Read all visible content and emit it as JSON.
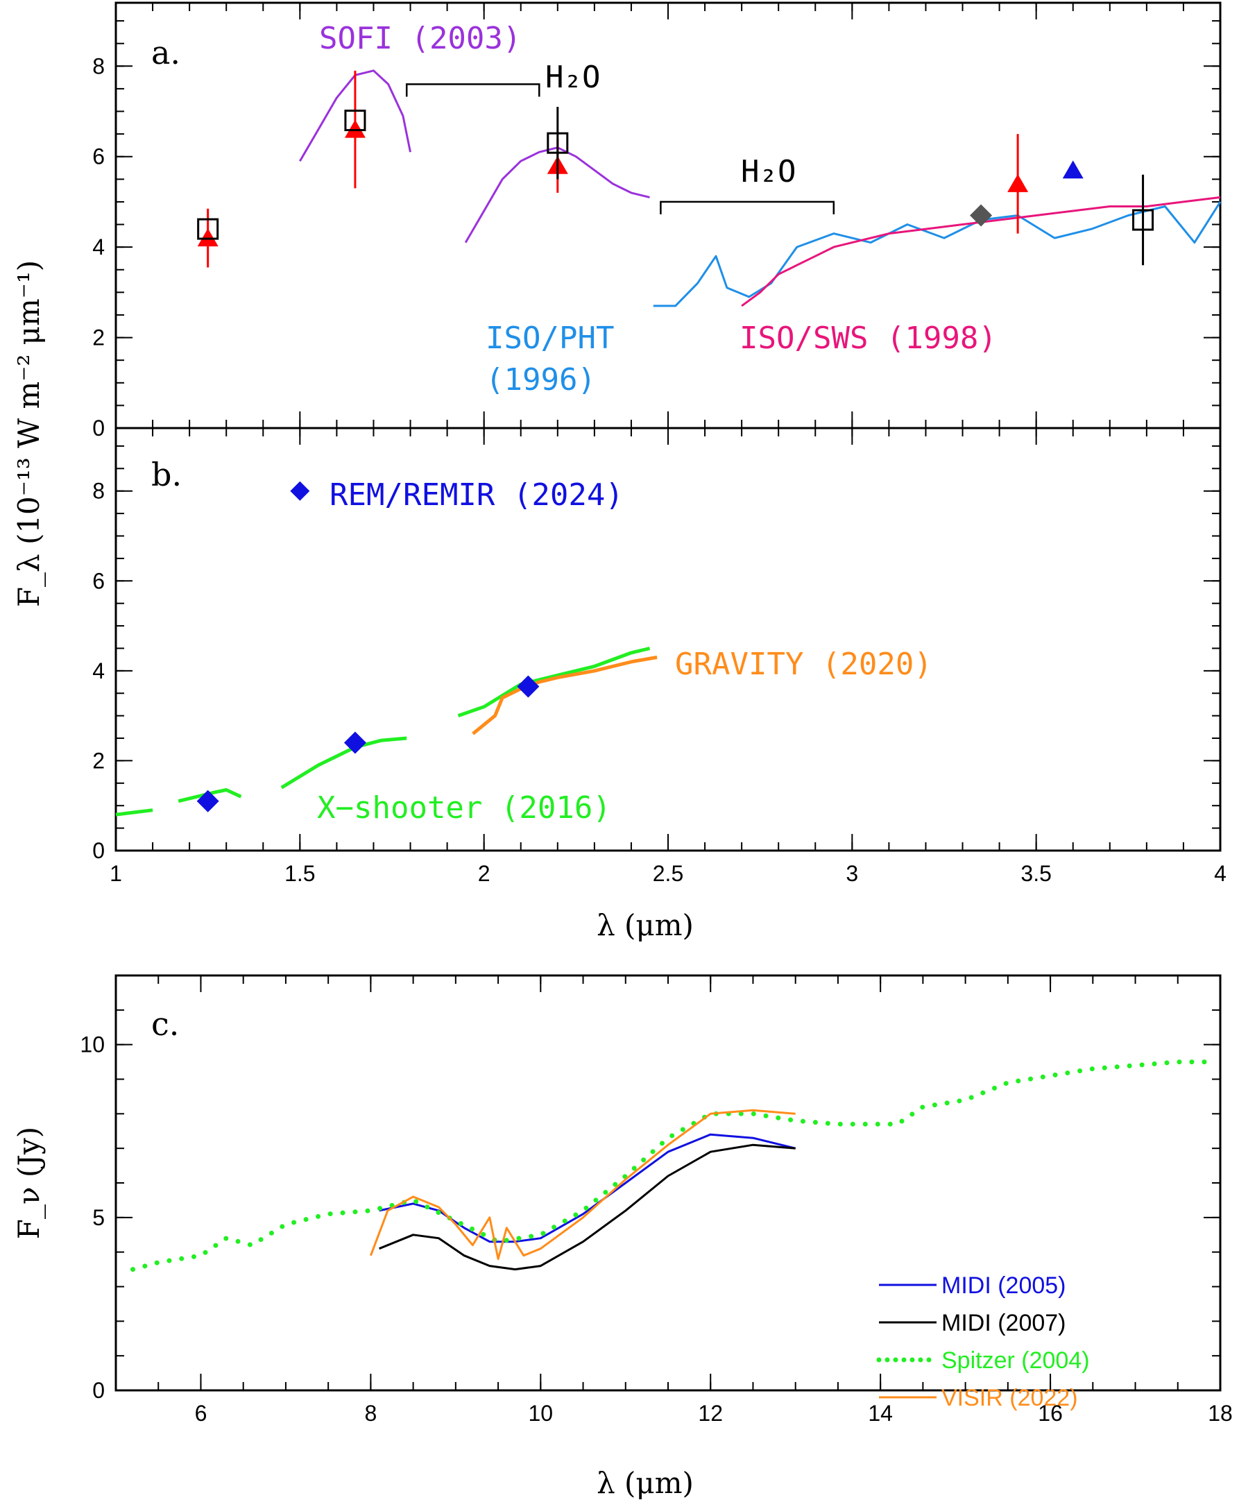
{
  "chart_data": [
    {
      "panel": "a.",
      "type": "line",
      "xlim": [
        1,
        4
      ],
      "ylim": [
        0,
        9.4
      ],
      "xlabel": "",
      "ylabel": "F_λ (10⁻¹³ W m⁻² μm⁻¹)",
      "yticks": [
        "0",
        "2",
        "4",
        "6",
        "8"
      ],
      "annotations": [
        {
          "text": "SOFI (2003)",
          "color": "#9a32dc"
        },
        {
          "text": "H₂O"
        },
        {
          "text": "H₂O"
        },
        {
          "text": "ISO/PHT",
          "color": "#1f8fe8"
        },
        {
          "text": "(1996)",
          "color": "#1f8fe8"
        },
        {
          "text": "ISO/SWS (1998)",
          "color": "#e8157b"
        }
      ],
      "h2o_bands": [
        [
          1.79,
          2.15
        ],
        [
          2.48,
          2.95
        ]
      ],
      "series": [
        {
          "name": "SOFI (2003)",
          "color": "#9a32dc",
          "x": [
            1.5,
            1.55,
            1.6,
            1.65,
            1.7,
            1.74,
            1.78,
            1.8
          ],
          "y": [
            5.9,
            6.6,
            7.3,
            7.8,
            7.9,
            7.6,
            6.9,
            6.1
          ]
        },
        {
          "name": "SOFI (2003)",
          "color": "#9a32dc",
          "x": [
            1.95,
            2.0,
            2.05,
            2.1,
            2.15,
            2.2,
            2.25,
            2.3,
            2.35,
            2.4,
            2.45
          ],
          "y": [
            4.1,
            4.8,
            5.5,
            5.9,
            6.1,
            6.2,
            6.0,
            5.7,
            5.4,
            5.2,
            5.1
          ]
        },
        {
          "name": "ISO/PHT (1996)",
          "color": "#1f8fe8",
          "x": [
            2.46,
            2.52,
            2.58,
            2.63,
            2.66,
            2.72,
            2.78,
            2.85,
            2.95,
            3.05,
            3.15,
            3.25,
            3.35,
            3.45,
            3.55,
            3.65,
            3.75,
            3.85,
            3.93,
            4.0
          ],
          "y": [
            2.7,
            2.7,
            3.2,
            3.8,
            3.1,
            2.9,
            3.2,
            4.0,
            4.3,
            4.1,
            4.5,
            4.2,
            4.6,
            4.7,
            4.2,
            4.4,
            4.7,
            4.9,
            4.1,
            5.0
          ]
        },
        {
          "name": "ISO/SWS (1998)",
          "color": "#e8157b",
          "x": [
            2.7,
            2.75,
            2.8,
            2.85,
            2.9,
            2.95,
            3.0,
            3.1,
            3.2,
            3.3,
            3.4,
            3.5,
            3.6,
            3.7,
            3.8,
            3.9,
            4.0
          ],
          "y": [
            2.7,
            3.0,
            3.4,
            3.6,
            3.8,
            4.0,
            4.1,
            4.3,
            4.4,
            4.5,
            4.6,
            4.7,
            4.8,
            4.9,
            4.9,
            5.0,
            5.1
          ]
        }
      ],
      "points": [
        {
          "marker": "triangle",
          "color": "#ff0000",
          "x": [
            1.25,
            1.65,
            2.2,
            3.45
          ],
          "y": [
            4.2,
            6.6,
            5.8,
            5.4
          ],
          "err": [
            0.65,
            1.3,
            0.6,
            1.1
          ]
        },
        {
          "marker": "open-square",
          "color": "#000000",
          "x": [
            1.25,
            1.65,
            2.2,
            3.79
          ],
          "y": [
            4.4,
            6.8,
            6.3,
            4.6
          ],
          "err": [
            0,
            0,
            0.8,
            1.0
          ]
        },
        {
          "marker": "diamond",
          "color": "#555555",
          "x": [
            3.35
          ],
          "y": [
            4.7
          ]
        },
        {
          "marker": "triangle",
          "color": "#1010e0",
          "x": [
            3.6
          ],
          "y": [
            5.7
          ]
        }
      ]
    },
    {
      "panel": "b.",
      "type": "line",
      "xlim": [
        1,
        4
      ],
      "ylim": [
        0,
        9.4
      ],
      "xlabel": "λ (μm)",
      "xticks": [
        "1",
        "1.5",
        "2",
        "2.5",
        "3",
        "3.5",
        "4"
      ],
      "yticks": [
        "0",
        "2",
        "4",
        "6",
        "8"
      ],
      "annotations": [
        {
          "text": "REM/REMIR (2024)",
          "color": "#1010e0"
        },
        {
          "text": "GRAVITY (2020)",
          "color": "#ff8c1a"
        },
        {
          "text": "X−shooter (2016)",
          "color": "#22ee22"
        }
      ],
      "series": [
        {
          "name": "X−shooter (2016)",
          "color": "#22ee22",
          "x": [
            1.0,
            1.05,
            1.1
          ],
          "y": [
            0.8,
            0.85,
            0.9
          ]
        },
        {
          "name": "X−shooter (2016)",
          "color": "#22ee22",
          "x": [
            1.17,
            1.22,
            1.27,
            1.3,
            1.34
          ],
          "y": [
            1.1,
            1.2,
            1.3,
            1.35,
            1.2
          ]
        },
        {
          "name": "X−shooter (2016)",
          "color": "#22ee22",
          "x": [
            1.45,
            1.55,
            1.65,
            1.72,
            1.79
          ],
          "y": [
            1.4,
            1.9,
            2.3,
            2.45,
            2.5
          ]
        },
        {
          "name": "X−shooter (2016)",
          "color": "#22ee22",
          "x": [
            1.93,
            2.0,
            2.1,
            2.2,
            2.3,
            2.4,
            2.45
          ],
          "y": [
            3.0,
            3.2,
            3.7,
            3.9,
            4.1,
            4.4,
            4.5
          ]
        },
        {
          "name": "GRAVITY (2020)",
          "color": "#ff8c1a",
          "x": [
            1.97,
            2.0,
            2.03,
            2.05,
            2.1,
            2.15,
            2.2,
            2.3,
            2.4,
            2.47
          ],
          "y": [
            2.6,
            2.8,
            3.0,
            3.4,
            3.6,
            3.75,
            3.85,
            4.0,
            4.2,
            4.3
          ]
        }
      ],
      "points": [
        {
          "marker": "diamond",
          "color": "#1010e0",
          "x": [
            1.25,
            1.65,
            2.12
          ],
          "y": [
            1.1,
            2.4,
            3.65
          ]
        }
      ]
    },
    {
      "panel": "c.",
      "type": "line",
      "xlim": [
        5,
        18
      ],
      "ylim": [
        0,
        12
      ],
      "xlabel": "λ (μm)",
      "ylabel": "F_ν (Jy)",
      "xticks": [
        "6",
        "8",
        "10",
        "12",
        "14",
        "16",
        "18"
      ],
      "yticks": [
        "0",
        "5",
        "10"
      ],
      "legend_position": "bottom-right",
      "series": [
        {
          "name": "MIDI (2005)",
          "color": "#1010e0",
          "x": [
            8.1,
            8.5,
            8.8,
            9.1,
            9.4,
            9.7,
            10.0,
            10.5,
            11.0,
            11.5,
            12.0,
            12.5,
            13.0
          ],
          "y": [
            5.2,
            5.4,
            5.2,
            4.7,
            4.3,
            4.3,
            4.4,
            5.1,
            6.0,
            6.9,
            7.4,
            7.3,
            7.0
          ]
        },
        {
          "name": "MIDI (2007)",
          "color": "#000000",
          "x": [
            8.1,
            8.5,
            8.8,
            9.1,
            9.4,
            9.7,
            10.0,
            10.5,
            11.0,
            11.5,
            12.0,
            12.5,
            13.0
          ],
          "y": [
            4.1,
            4.5,
            4.4,
            3.9,
            3.6,
            3.5,
            3.6,
            4.3,
            5.2,
            6.2,
            6.9,
            7.1,
            7.0
          ]
        },
        {
          "name": "Spitzer (2004)",
          "color": "#22ee22",
          "x": [
            5.2,
            5.5,
            6.0,
            6.3,
            6.6,
            7.0,
            7.5,
            8.0,
            8.5,
            9.0,
            9.5,
            10.0,
            10.5,
            11.0,
            11.5,
            12.0,
            12.5,
            13.0,
            13.5,
            14.2,
            14.5,
            15.0,
            15.5,
            16.0,
            16.5,
            17.0,
            17.5,
            17.9
          ],
          "y": [
            3.5,
            3.7,
            3.9,
            4.4,
            4.2,
            4.8,
            5.1,
            5.2,
            5.5,
            4.9,
            4.3,
            4.5,
            5.2,
            6.2,
            7.3,
            8.0,
            8.0,
            7.8,
            7.7,
            7.7,
            8.2,
            8.4,
            8.9,
            9.1,
            9.3,
            9.4,
            9.5,
            9.5
          ]
        },
        {
          "name": "VISIR (2022)",
          "color": "#ff8c1a",
          "x": [
            8.0,
            8.2,
            8.5,
            8.8,
            9.0,
            9.2,
            9.4,
            9.5,
            9.6,
            9.8,
            10.0,
            10.5,
            11.0,
            11.5,
            12.0,
            12.5,
            13.0
          ],
          "y": [
            3.9,
            5.2,
            5.6,
            5.3,
            4.8,
            4.2,
            5.0,
            3.8,
            4.7,
            3.9,
            4.1,
            5.0,
            6.1,
            7.1,
            8.0,
            8.1,
            8.0
          ]
        }
      ],
      "legend": [
        {
          "text": "MIDI (2005)",
          "color": "#1010e0"
        },
        {
          "text": "MIDI (2007)",
          "color": "#000000"
        },
        {
          "text": "Spitzer (2004)",
          "color": "#22ee22"
        },
        {
          "text": "VISIR (2022)",
          "color": "#ff8c1a"
        }
      ]
    }
  ]
}
